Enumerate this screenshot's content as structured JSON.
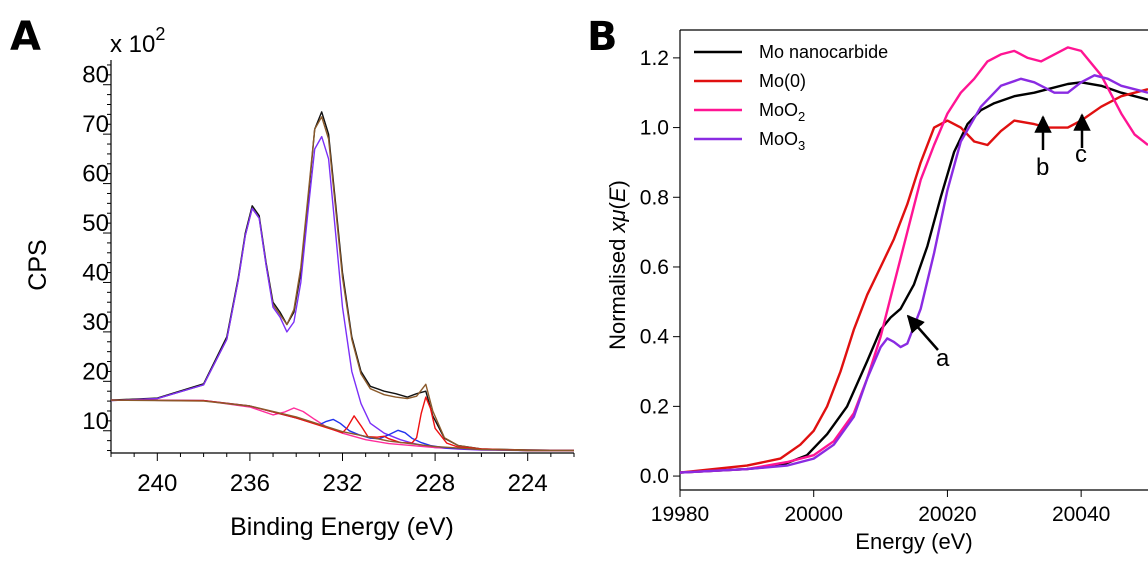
{
  "panel_a": {
    "label": "A",
    "multiplier_base": "x 10",
    "multiplier_exp": "2"
  },
  "panel_b": {
    "label": "B",
    "ylabel_prefix": "Normalised ",
    "ylabel_x": "x",
    "ylabel_mu": "μ",
    "ylabel_E": "E",
    "annotations": [
      "a",
      "b",
      "c"
    ]
  },
  "chart_data": [
    {
      "type": "line",
      "title": "",
      "xlabel": "Binding Energy (eV)",
      "ylabel": "CPS",
      "x_reversed": true,
      "xlim": [
        242,
        222
      ],
      "ylim": [
        5.5,
        85
      ],
      "xticks": [
        240,
        236,
        232,
        228,
        224
      ],
      "yticks": [
        10,
        20,
        30,
        40,
        50,
        60,
        70,
        80
      ],
      "y_multiplier": "x 10^2",
      "grid": false,
      "legend": "none",
      "series": [
        {
          "color": "#111111",
          "x": [
            242,
            240,
            238,
            237,
            236.5,
            236.2,
            235.9,
            235.6,
            235.3,
            235,
            234.7,
            234.4,
            234.1,
            233.8,
            233.5,
            233.2,
            232.9,
            232.6,
            232.3,
            232,
            231.6,
            231.2,
            230.8,
            230.2,
            229.7,
            229.2,
            228.8,
            228.4,
            228.1,
            227.6,
            227,
            226,
            224,
            222
          ],
          "y": [
            16.2,
            16.6,
            19.5,
            29,
            41,
            50,
            55.5,
            53.5,
            44,
            36,
            34,
            31.5,
            34,
            42,
            56,
            71,
            74.5,
            70,
            56,
            42,
            29,
            22,
            19,
            18,
            17.5,
            16.8,
            17.5,
            18,
            13,
            8.5,
            7,
            6.3,
            6.1,
            6
          ]
        },
        {
          "color": "#8b5a2b",
          "x": [
            242,
            240,
            238,
            237,
            236.5,
            236.2,
            235.9,
            235.6,
            235.3,
            235,
            234.7,
            234.4,
            234.1,
            233.8,
            233.5,
            233.2,
            232.9,
            232.6,
            232.3,
            232,
            231.6,
            231.2,
            230.8,
            230.2,
            229.7,
            229.2,
            228.8,
            228.4,
            228.1,
            227.6,
            227,
            226,
            224,
            222
          ],
          "y": [
            16.1,
            16.5,
            19.3,
            28.5,
            40.5,
            49.5,
            55,
            53,
            43.5,
            35.5,
            33.5,
            31.5,
            34.5,
            43,
            57,
            71,
            73.5,
            69,
            55,
            41,
            28.5,
            21.5,
            18.5,
            17.3,
            16.8,
            16.5,
            17,
            19.4,
            14,
            8.6,
            7,
            6.3,
            6.1,
            6
          ]
        },
        {
          "color": "#7b2ff7",
          "x": [
            242,
            240,
            238,
            237,
            236.5,
            236.2,
            235.9,
            235.6,
            235.3,
            235,
            234.7,
            234.4,
            234.1,
            233.8,
            233.5,
            233.2,
            232.9,
            232.6,
            232.3,
            232,
            231.6,
            231.2,
            230.8,
            230.2,
            229.5,
            229,
            228.5,
            228,
            227,
            226,
            224,
            222
          ],
          "y": [
            16.1,
            16.5,
            19.3,
            28.5,
            40.5,
            49.5,
            55,
            53,
            43.5,
            35,
            33,
            30,
            32,
            40,
            54,
            67,
            69.5,
            65,
            50,
            35,
            22,
            15.5,
            11.5,
            9.5,
            8.2,
            7.5,
            7,
            6.6,
            6.3,
            6.1,
            6,
            6
          ]
        },
        {
          "color": "#ff2d9b",
          "x": [
            242,
            238,
            236,
            235,
            234.5,
            234.1,
            233.7,
            233.2,
            232.7,
            232,
            231,
            230,
            229,
            228,
            226,
            224,
            222
          ],
          "y": [
            16.2,
            16.1,
            14.8,
            13.2,
            13.8,
            14.6,
            13.9,
            12.3,
            10.8,
            9.5,
            8.2,
            7.4,
            7,
            6.6,
            6.2,
            6,
            6
          ]
        },
        {
          "color": "#2233ee",
          "x": [
            242,
            238,
            236,
            234,
            233,
            232.7,
            232.4,
            232.1,
            231.7,
            231.3,
            230.8,
            230.4,
            230,
            229.6,
            229.3,
            229,
            228.6,
            228.2,
            227.5,
            226,
            224,
            222
          ],
          "y": [
            16.2,
            16.1,
            15,
            12.6,
            11.2,
            11.9,
            12.3,
            11.5,
            10,
            9.2,
            8.5,
            8.4,
            9.2,
            10.1,
            9.6,
            8.5,
            7.6,
            7,
            6.5,
            6.2,
            6,
            6
          ]
        },
        {
          "color": "#ee1111",
          "x": [
            242,
            238,
            236,
            234,
            232,
            231.8,
            231.5,
            231.2,
            230.9,
            230.5,
            230.2,
            230,
            229.5,
            229,
            228.8,
            228.6,
            228.4,
            228.2,
            228,
            227.5,
            227,
            226,
            224,
            222
          ],
          "y": [
            16.2,
            16.1,
            15,
            12.6,
            9.6,
            10.6,
            13,
            11,
            8.8,
            8.7,
            8.9,
            8.4,
            7.6,
            7.5,
            8.6,
            13.5,
            16.8,
            14.5,
            10.5,
            7.5,
            6.7,
            6.3,
            6,
            6
          ]
        },
        {
          "color": "#8b5a2b",
          "x": [
            242,
            240,
            238,
            236,
            234,
            232,
            230,
            228,
            226,
            224,
            222
          ],
          "y": [
            16.2,
            16.1,
            16,
            15,
            12.8,
            9.8,
            7.9,
            6.8,
            6.2,
            6,
            6
          ]
        }
      ]
    },
    {
      "type": "line",
      "title": "",
      "xlabel": "Energy (eV)",
      "ylabel": "Normalised xμ(E)",
      "xlim": [
        19980,
        20050
      ],
      "ylim": [
        -0.04,
        1.28
      ],
      "xticks": [
        19980,
        20000,
        20020,
        20040
      ],
      "yticks": [
        0.0,
        0.2,
        0.4,
        0.6,
        0.8,
        1.0,
        1.2
      ],
      "grid": false,
      "legend": "top-left",
      "series": [
        {
          "name": "Mo nanocarbide",
          "color": "#000000",
          "x": [
            19980,
            19990,
            19995,
            19999,
            20002,
            20005,
            20008,
            20010,
            20011.5,
            20013,
            20015,
            20017,
            20019,
            20021,
            20023,
            20025,
            20027,
            20030,
            20033,
            20035,
            20038,
            20040,
            20043,
            20046,
            20050
          ],
          "y": [
            0.01,
            0.02,
            0.03,
            0.06,
            0.12,
            0.2,
            0.33,
            0.42,
            0.455,
            0.48,
            0.55,
            0.66,
            0.8,
            0.93,
            1.01,
            1.05,
            1.07,
            1.09,
            1.1,
            1.11,
            1.125,
            1.13,
            1.12,
            1.1,
            1.08
          ]
        },
        {
          "name": "Mo(0)",
          "color": "#e01010",
          "x": [
            19980,
            19990,
            19995,
            19998,
            20000,
            20002,
            20004,
            20006,
            20008,
            20010,
            20012,
            20014,
            20016,
            20018,
            20020,
            20022,
            20024,
            20026,
            20028,
            20030,
            20033,
            20035,
            20038,
            20040,
            20043,
            20046,
            20050
          ],
          "y": [
            0.01,
            0.03,
            0.05,
            0.09,
            0.13,
            0.2,
            0.3,
            0.42,
            0.52,
            0.6,
            0.68,
            0.78,
            0.9,
            1.0,
            1.02,
            1.0,
            0.96,
            0.95,
            0.99,
            1.02,
            1.01,
            1.0,
            1.0,
            1.02,
            1.06,
            1.09,
            1.11
          ]
        },
        {
          "name": "MoO2",
          "color": "#ff1493",
          "x": [
            19980,
            19990,
            19996,
            20000,
            20003,
            20006,
            20008,
            20010,
            20012,
            20014,
            20016,
            20018,
            20020,
            20022,
            20024,
            20026,
            20028,
            20030,
            20032,
            20034,
            20036,
            20038,
            20040,
            20043,
            20046,
            20048,
            20050
          ],
          "y": [
            0.01,
            0.02,
            0.04,
            0.06,
            0.1,
            0.18,
            0.28,
            0.4,
            0.55,
            0.7,
            0.85,
            0.95,
            1.04,
            1.1,
            1.14,
            1.19,
            1.21,
            1.22,
            1.2,
            1.19,
            1.21,
            1.23,
            1.22,
            1.15,
            1.04,
            0.98,
            0.95
          ]
        },
        {
          "name": "MoO3",
          "color": "#8a2be2",
          "x": [
            19980,
            19990,
            19996,
            20000,
            20003,
            20006,
            20008,
            20010,
            20011,
            20012,
            20013,
            20014,
            20016,
            20018,
            20020,
            20022,
            20025,
            20028,
            20031,
            20033,
            20035,
            20036,
            20038,
            20040,
            20042,
            20044,
            20046,
            20050
          ],
          "y": [
            0.01,
            0.02,
            0.03,
            0.05,
            0.09,
            0.17,
            0.28,
            0.37,
            0.395,
            0.385,
            0.37,
            0.38,
            0.48,
            0.64,
            0.82,
            0.96,
            1.06,
            1.12,
            1.14,
            1.13,
            1.11,
            1.1,
            1.1,
            1.13,
            1.15,
            1.14,
            1.12,
            1.1
          ]
        }
      ]
    }
  ]
}
